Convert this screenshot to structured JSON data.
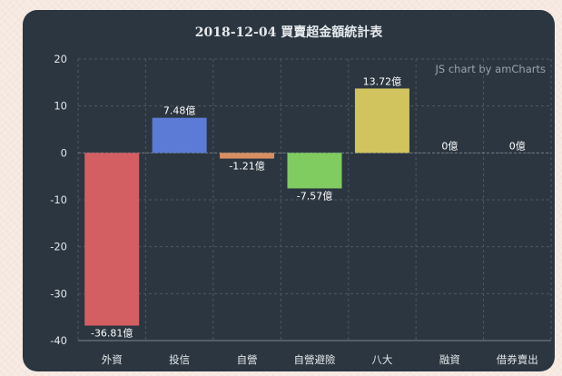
{
  "chart_data": {
    "type": "bar",
    "title": "2018-12-04 買賣超金額統計表",
    "credit": "JS chart by amCharts",
    "categories": [
      "外資",
      "投信",
      "自營",
      "自營避險",
      "八大",
      "融資",
      "借券賣出"
    ],
    "values": [
      -36.81,
      7.48,
      -1.21,
      -7.57,
      13.72,
      0,
      0
    ],
    "data_labels": [
      "-36.81億",
      "7.48億",
      "-1.21億",
      "-7.57億",
      "13.72億",
      "0億",
      "0億"
    ],
    "colors": [
      "#d35f63",
      "#5b7bd6",
      "#d98f62",
      "#80cc60",
      "#d1c45f",
      "#c7b9b4",
      "#c7b9b4"
    ],
    "y_ticks": [
      "20",
      "10",
      "0",
      "-10",
      "-20",
      "-30",
      "-40"
    ],
    "ylim": [
      -40,
      20
    ],
    "grid": true,
    "xlabel": "",
    "ylabel": ""
  }
}
